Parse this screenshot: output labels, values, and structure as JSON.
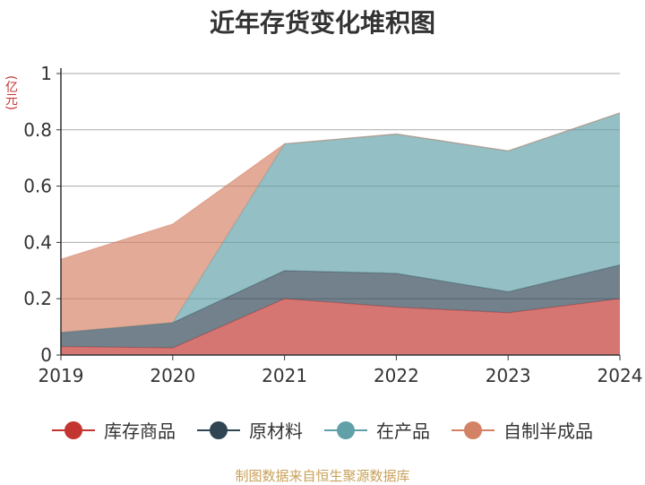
{
  "title": "近年存货变化堆积图",
  "unit_label": "(亿元)",
  "source": "制图数据来自恒生聚源数据库",
  "chart_data": {
    "type": "area",
    "stacked": true,
    "x": [
      "2019",
      "2020",
      "2021",
      "2022",
      "2023",
      "2024"
    ],
    "ylim": [
      0,
      1
    ],
    "yticks": [
      "0",
      "0.2",
      "0.4",
      "0.6",
      "0.8",
      "1"
    ],
    "grid": true,
    "legend": "bottom",
    "series": [
      {
        "name": "库存商品",
        "values": [
          0.03,
          0.025,
          0.2,
          0.17,
          0.15,
          0.2
        ],
        "color": "#c23531"
      },
      {
        "name": "原材料",
        "values": [
          0.05,
          0.09,
          0.1,
          0.12,
          0.075,
          0.12
        ],
        "color": "#2f4554"
      },
      {
        "name": "在产品",
        "values": [
          0.0,
          0.0,
          0.45,
          0.495,
          0.5,
          0.54
        ],
        "color": "#61a0a8"
      },
      {
        "name": "自制半成品",
        "values": [
          0.26,
          0.35,
          0.0,
          0.0,
          0.0,
          0.0
        ],
        "color": "#d48265"
      }
    ]
  }
}
